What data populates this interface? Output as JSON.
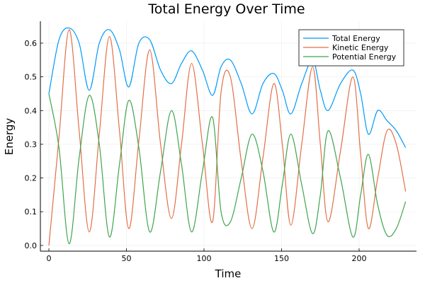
{
  "chart_data": {
    "type": "line",
    "title": "Total Energy Over Time",
    "xlabel": "Time",
    "ylabel": "Energy",
    "xlim": [
      -5.5,
      237
    ],
    "ylim": [
      -0.017,
      0.665
    ],
    "xticks": [
      0,
      50,
      100,
      150,
      200
    ],
    "xtick_labels": [
      "0",
      "50",
      "100",
      "150",
      "200"
    ],
    "yticks": [
      0,
      0.1,
      0.2,
      0.3,
      0.4,
      0.5,
      0.6
    ],
    "ytick_labels": [
      "0.0",
      "0.1",
      "0.2",
      "0.3",
      "0.4",
      "0.5",
      "0.6"
    ],
    "grid": true,
    "legend": "top-right",
    "x": [
      0,
      6.5,
      13,
      19.5,
      26,
      32.5,
      39,
      45.5,
      51.5,
      58,
      65,
      72,
      79,
      85.5,
      92,
      99,
      105.5,
      111,
      117,
      124,
      131,
      138,
      145,
      150.5,
      156,
      163,
      170,
      175,
      180,
      188,
      196,
      201,
      206,
      212,
      218,
      224,
      230
    ],
    "series": [
      {
        "name": "Total Energy",
        "color": "#009AFA",
        "values": [
          0.45,
          0.61,
          0.645,
          0.6,
          0.46,
          0.6,
          0.64,
          0.58,
          0.47,
          0.6,
          0.61,
          0.52,
          0.48,
          0.54,
          0.577,
          0.52,
          0.445,
          0.53,
          0.55,
          0.48,
          0.39,
          0.48,
          0.51,
          0.46,
          0.39,
          0.48,
          0.55,
          0.46,
          0.4,
          0.48,
          0.52,
          0.45,
          0.33,
          0.4,
          0.37,
          0.34,
          0.29
        ]
      },
      {
        "name": "Kinetic Energy",
        "color": "#E36F47",
        "values": [
          0,
          0.32,
          0.64,
          0.34,
          0.04,
          0.33,
          0.62,
          0.34,
          0.05,
          0.31,
          0.58,
          0.3,
          0.08,
          0.3,
          0.54,
          0.3,
          0.07,
          0.455,
          0.5,
          0.25,
          0.05,
          0.26,
          0.48,
          0.3,
          0.06,
          0.3,
          0.53,
          0.3,
          0.07,
          0.28,
          0.5,
          0.27,
          0.05,
          0.2,
          0.34,
          0.3,
          0.16
        ]
      },
      {
        "name": "Potential Energy",
        "color": "#3EA44E",
        "values": [
          0.45,
          0.29,
          0.005,
          0.26,
          0.445,
          0.3,
          0.025,
          0.24,
          0.43,
          0.29,
          0.04,
          0.22,
          0.4,
          0.24,
          0.04,
          0.22,
          0.38,
          0.1,
          0.07,
          0.2,
          0.33,
          0.22,
          0.04,
          0.18,
          0.33,
          0.18,
          0.035,
          0.15,
          0.34,
          0.2,
          0.025,
          0.15,
          0.27,
          0.12,
          0.03,
          0.05,
          0.13
        ]
      }
    ]
  }
}
